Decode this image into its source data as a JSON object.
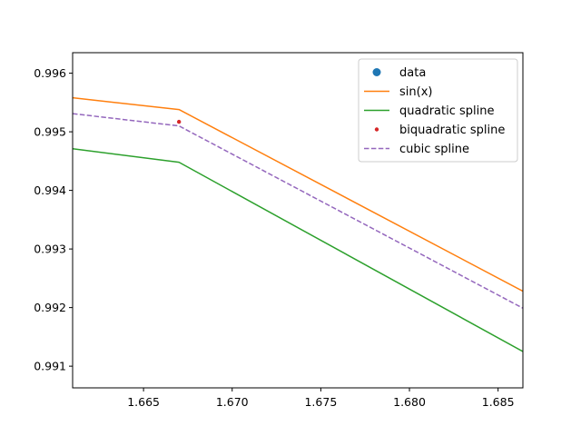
{
  "chart_data": {
    "type": "line",
    "title": "",
    "xlabel": "",
    "ylabel": "",
    "xlim": [
      1.661,
      1.6864
    ],
    "ylim": [
      0.99063,
      0.99635
    ],
    "grid": false,
    "legend_placement": "top-right",
    "x_ticks": [
      1.665,
      1.67,
      1.675,
      1.68,
      1.685
    ],
    "x_tick_labels": [
      "1.665",
      "1.670",
      "1.675",
      "1.680",
      "1.685"
    ],
    "y_ticks": [
      0.991,
      0.992,
      0.993,
      0.994,
      0.995,
      0.996
    ],
    "y_tick_labels": [
      "0.991",
      "0.992",
      "0.993",
      "0.994",
      "0.995",
      "0.996"
    ],
    "series": [
      {
        "name": "data",
        "style": "marker-large",
        "color": "#1f77b4",
        "x": [],
        "y": []
      },
      {
        "name": "sin(x)",
        "style": "solid",
        "color": "#ff7f0e",
        "x": [
          1.661,
          1.667,
          1.6864
        ],
        "y": [
          0.99558,
          0.99538,
          0.99228
        ]
      },
      {
        "name": "quadratic spline",
        "style": "solid",
        "color": "#2ca02c",
        "x": [
          1.661,
          1.667,
          1.6864
        ],
        "y": [
          0.99471,
          0.99448,
          0.99125
        ]
      },
      {
        "name": "biquadratic spline",
        "style": "marker-small",
        "color": "#d62728",
        "x": [
          1.667
        ],
        "y": [
          0.99517
        ]
      },
      {
        "name": "cubic spline",
        "style": "dashed",
        "color": "#9467bd",
        "x": [
          1.661,
          1.667,
          1.6864
        ],
        "y": [
          0.99531,
          0.9951,
          0.99199
        ]
      }
    ]
  }
}
